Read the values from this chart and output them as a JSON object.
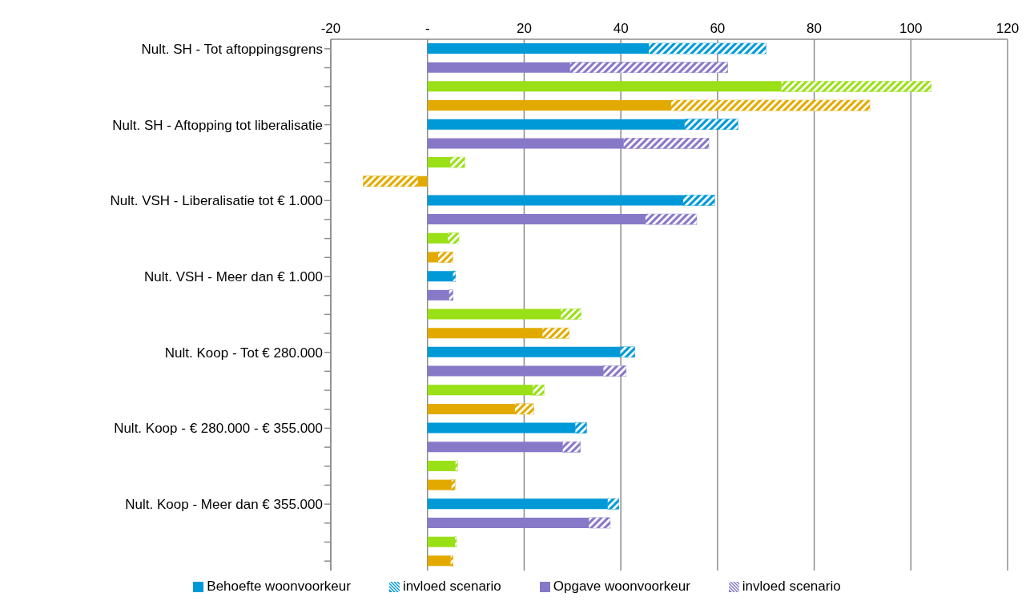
{
  "chart_data": {
    "type": "bar",
    "orientation": "horizontal",
    "stacked": true,
    "categories": [
      "Nult. SH - Tot aftoppingsgrens",
      null,
      null,
      null,
      "Nult. SH - Aftopping tot liberalisatie",
      null,
      null,
      null,
      "Nult. VSH - Liberalisatie tot € 1.000",
      null,
      null,
      null,
      "Nult. VSH - Meer dan € 1.000",
      null,
      null,
      null,
      "Nult. Koop - Tot € 280.000",
      null,
      null,
      null,
      "Nult. Koop -  € 280.000 - € 355.000",
      null,
      null,
      null,
      "Nult. Koop - Meer dan € 355.000",
      null,
      null,
      null
    ],
    "series": [
      {
        "name": "Behoefte woonvoorkeur",
        "color": "#0099d8",
        "values": [
          45.8,
          null,
          null,
          null,
          53.2,
          null,
          null,
          null,
          52.9,
          null,
          null,
          null,
          5.3,
          null,
          null,
          null,
          39.9,
          null,
          null,
          null,
          30.6,
          null,
          null,
          null,
          37.3,
          null,
          null,
          null
        ]
      },
      {
        "name": "invloed scenario",
        "color": "#0099d8",
        "values": [
          24.2,
          null,
          null,
          null,
          11,
          null,
          null,
          null,
          6.5,
          null,
          null,
          null,
          0.5,
          null,
          null,
          null,
          3,
          null,
          null,
          null,
          2.3,
          null,
          null,
          null,
          2.3,
          null,
          null,
          null
        ]
      },
      {
        "name": "Opgave woonvoorkeur",
        "color": "#8878c8",
        "values": [
          null,
          29.5,
          null,
          null,
          null,
          40.6,
          null,
          null,
          null,
          45.1,
          null,
          null,
          null,
          4.5,
          null,
          null,
          null,
          36.4,
          null,
          null,
          null,
          28,
          null,
          null,
          null,
          33.4,
          null,
          null
        ]
      },
      {
        "name": "invloed scenario",
        "color": "#8878c8",
        "values": [
          null,
          32.6,
          null,
          null,
          null,
          17.6,
          null,
          null,
          null,
          10.6,
          null,
          null,
          null,
          0.8,
          null,
          null,
          null,
          4.7,
          null,
          null,
          null,
          3.6,
          null,
          null,
          null,
          4.4,
          null,
          null
        ]
      },
      {
        "color": "#99e016",
        "values": [
          null,
          null,
          73.2,
          null,
          null,
          null,
          4.7,
          null,
          null,
          null,
          4.2,
          null,
          null,
          null,
          27.6,
          null,
          null,
          null,
          21.8,
          null,
          null,
          null,
          5.8,
          null,
          null,
          null,
          5.7,
          null
        ]
      },
      {
        "color": "#99e016",
        "values": [
          null,
          null,
          31,
          null,
          null,
          null,
          3,
          null,
          null,
          null,
          2.3,
          null,
          null,
          null,
          4.2,
          null,
          null,
          null,
          2.3,
          null,
          null,
          null,
          0.4,
          null,
          null,
          null,
          0.3,
          null
        ]
      },
      {
        "color": "#e2aa00",
        "values": [
          null,
          null,
          null,
          50.4,
          null,
          null,
          null,
          -2,
          null,
          null,
          null,
          2.2,
          null,
          null,
          null,
          23.8,
          null,
          null,
          null,
          18.1,
          null,
          null,
          null,
          5,
          null,
          null,
          null,
          4.8
        ]
      },
      {
        "color": "#e2aa00",
        "values": [
          null,
          null,
          null,
          41.1,
          null,
          null,
          null,
          -11.3,
          null,
          null,
          null,
          3,
          null,
          null,
          null,
          5.5,
          null,
          null,
          null,
          3.9,
          null,
          null,
          null,
          0.7,
          null,
          null,
          null,
          0.5
        ]
      }
    ],
    "xlim": [
      -20,
      120
    ],
    "xticks": [
      -20,
      {
        "value": 0,
        "label": "-"
      },
      20,
      40,
      60,
      80,
      100,
      120
    ],
    "grid": "x",
    "legend": "bottom"
  }
}
